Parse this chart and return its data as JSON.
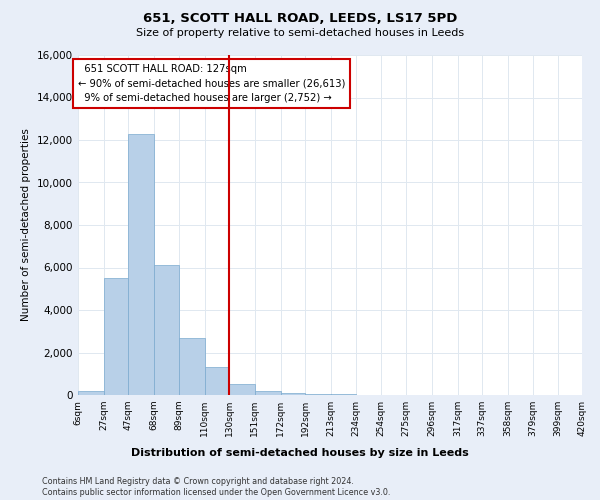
{
  "title1": "651, SCOTT HALL ROAD, LEEDS, LS17 5PD",
  "title2": "Size of property relative to semi-detached houses in Leeds",
  "xlabel": "Distribution of semi-detached houses by size in Leeds",
  "ylabel": "Number of semi-detached properties",
  "footnote": "Contains HM Land Registry data © Crown copyright and database right 2024.\nContains public sector information licensed under the Open Government Licence v3.0.",
  "bin_labels": [
    "6sqm",
    "27sqm",
    "47sqm",
    "68sqm",
    "89sqm",
    "110sqm",
    "130sqm",
    "151sqm",
    "172sqm",
    "192sqm",
    "213sqm",
    "234sqm",
    "254sqm",
    "275sqm",
    "296sqm",
    "317sqm",
    "337sqm",
    "358sqm",
    "379sqm",
    "399sqm",
    "420sqm"
  ],
  "bar_values": [
    200,
    5500,
    12300,
    6100,
    2700,
    1300,
    500,
    200,
    100,
    70,
    30,
    0,
    0,
    0,
    0,
    0,
    0,
    0,
    0,
    0
  ],
  "property_label": "651 SCOTT HALL ROAD: 127sqm",
  "pct_smaller": 90,
  "count_smaller": 26613,
  "pct_larger": 9,
  "count_larger": 2752,
  "bar_color": "#b8d0e8",
  "bar_edge_color": "#7aaacf",
  "vline_color": "#cc0000",
  "fig_background": "#e8eef8",
  "ax_background": "#ffffff",
  "ylim": [
    0,
    16000
  ],
  "yticks": [
    0,
    2000,
    4000,
    6000,
    8000,
    10000,
    12000,
    14000,
    16000
  ],
  "vline_x": 130,
  "grid_color": "#e0e8f0"
}
